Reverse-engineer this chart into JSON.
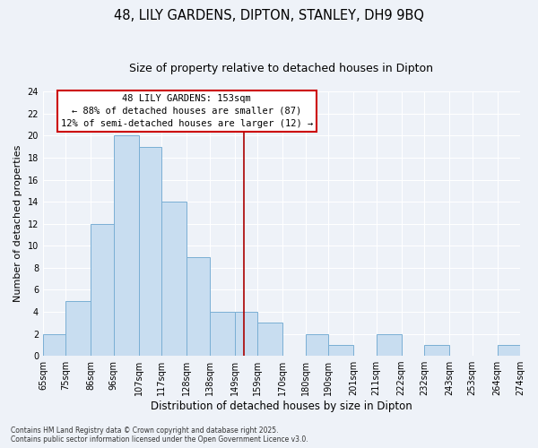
{
  "title": "48, LILY GARDENS, DIPTON, STANLEY, DH9 9BQ",
  "subtitle": "Size of property relative to detached houses in Dipton",
  "xlabel": "Distribution of detached houses by size in Dipton",
  "ylabel": "Number of detached properties",
  "bin_edges": [
    65,
    75,
    86,
    96,
    107,
    117,
    128,
    138,
    149,
    159,
    170,
    180,
    190,
    201,
    211,
    222,
    232,
    243,
    253,
    264,
    274
  ],
  "bin_labels": [
    "65sqm",
    "75sqm",
    "86sqm",
    "96sqm",
    "107sqm",
    "117sqm",
    "128sqm",
    "138sqm",
    "149sqm",
    "159sqm",
    "170sqm",
    "180sqm",
    "190sqm",
    "201sqm",
    "211sqm",
    "222sqm",
    "232sqm",
    "243sqm",
    "253sqm",
    "264sqm",
    "274sqm"
  ],
  "counts": [
    2,
    5,
    12,
    20,
    19,
    14,
    9,
    4,
    4,
    3,
    0,
    2,
    1,
    0,
    2,
    0,
    1,
    0,
    0,
    1
  ],
  "bar_color": "#c8ddf0",
  "bar_edge_color": "#7aafd4",
  "vline_x": 153,
  "vline_color": "#aa0000",
  "ylim": [
    0,
    24
  ],
  "yticks": [
    0,
    2,
    4,
    6,
    8,
    10,
    12,
    14,
    16,
    18,
    20,
    22,
    24
  ],
  "annotation_title": "48 LILY GARDENS: 153sqm",
  "annotation_line1": "← 88% of detached houses are smaller (87)",
  "annotation_line2": "12% of semi-detached houses are larger (12) →",
  "annotation_box_color": "#ffffff",
  "annotation_box_edge": "#cc0000",
  "footnote1": "Contains HM Land Registry data © Crown copyright and database right 2025.",
  "footnote2": "Contains public sector information licensed under the Open Government Licence v3.0.",
  "background_color": "#eef2f8",
  "grid_color": "#ffffff",
  "title_fontsize": 10.5,
  "subtitle_fontsize": 9,
  "ylabel_fontsize": 8,
  "xlabel_fontsize": 8.5,
  "tick_fontsize": 7,
  "annot_fontsize": 7.5,
  "footnote_fontsize": 5.5
}
